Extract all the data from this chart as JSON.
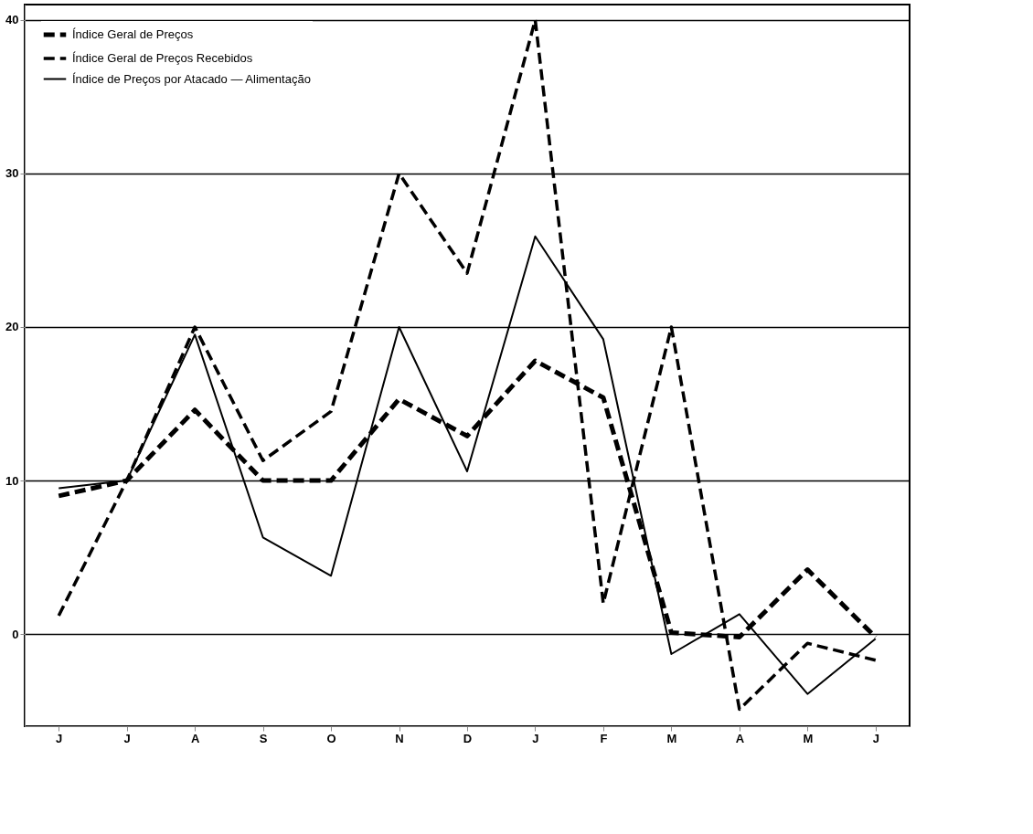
{
  "chart_data": {
    "type": "line",
    "categories": [
      "J",
      "J",
      "A",
      "S",
      "O",
      "N",
      "D",
      "J",
      "F",
      "M",
      "A",
      "M",
      "J"
    ],
    "series": [
      {
        "name": "Índice Geral de Preços",
        "color": "#000000",
        "line_style": "dashed",
        "values": [
          9,
          10,
          14.6,
          10,
          10,
          15.3,
          12.9,
          17.8,
          15.4,
          0.1,
          -0.2,
          4.2,
          -0.2
        ]
      },
      {
        "name": "Índice Geral de Preços Recebidos",
        "color": "#000000",
        "line_style": "dashed",
        "values": [
          1.2,
          10,
          20,
          11.3,
          14.5,
          30,
          23.5,
          40,
          2,
          20,
          -4.9,
          -0.6,
          -1.7
        ]
      },
      {
        "name": "Índice de Preços por Atacado — Alimentação",
        "color": "#000000",
        "line_style": "solid",
        "values": [
          9.5,
          10,
          19.5,
          6.3,
          3.8,
          20,
          10.6,
          25.9,
          19.2,
          -1.3,
          1.3,
          -3.9,
          -0.3
        ]
      }
    ],
    "ylim": [
      -6,
      41
    ],
    "yticks": [
      0,
      10,
      20,
      30,
      40
    ],
    "grid": "y",
    "legend": "top left"
  }
}
